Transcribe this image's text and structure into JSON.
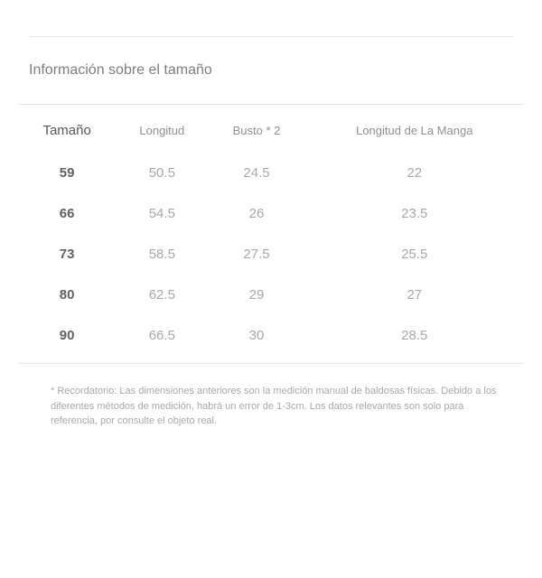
{
  "section_title": "Información sobre el tamaño",
  "table": {
    "type": "table",
    "background_color": "#ffffff",
    "border_color": "#e6e6e6",
    "header_color": "#8f8f8f",
    "size_header_color": "#555555",
    "cell_color": "#a8a8a8",
    "size_cell_color": "#606060",
    "header_fontsize": 13,
    "cell_fontsize": 15,
    "columns": [
      {
        "key": "size",
        "label": "Tamaño",
        "is_size_col": true
      },
      {
        "key": "length",
        "label": "Longitud",
        "is_size_col": false
      },
      {
        "key": "bust",
        "label": "Busto * 2",
        "is_size_col": false
      },
      {
        "key": "sleeve",
        "label": "Longitud de La Manga",
        "is_size_col": false
      }
    ],
    "rows": [
      {
        "size": "59",
        "length": "50.5",
        "bust": "24.5",
        "sleeve": "22"
      },
      {
        "size": "66",
        "length": "54.5",
        "bust": "26",
        "sleeve": "23.5"
      },
      {
        "size": "73",
        "length": "58.5",
        "bust": "27.5",
        "sleeve": "25.5"
      },
      {
        "size": "80",
        "length": "62.5",
        "bust": "29",
        "sleeve": "27"
      },
      {
        "size": "90",
        "length": "66.5",
        "bust": "30",
        "sleeve": "28.5"
      }
    ]
  },
  "footnote": "* Recordatorio: Las dimensiones anteriores son la medición manual de baldosas físicas. Debido a los diferentes métodos de medición, habrá un error de 1-3cm. Los datos relevantes son solo para referencia, por consulte el objeto real.",
  "colors": {
    "page_bg": "#ffffff",
    "rule": "#e6e6e6",
    "title": "#7d7d7d",
    "footnote": "#a8a8a8"
  }
}
